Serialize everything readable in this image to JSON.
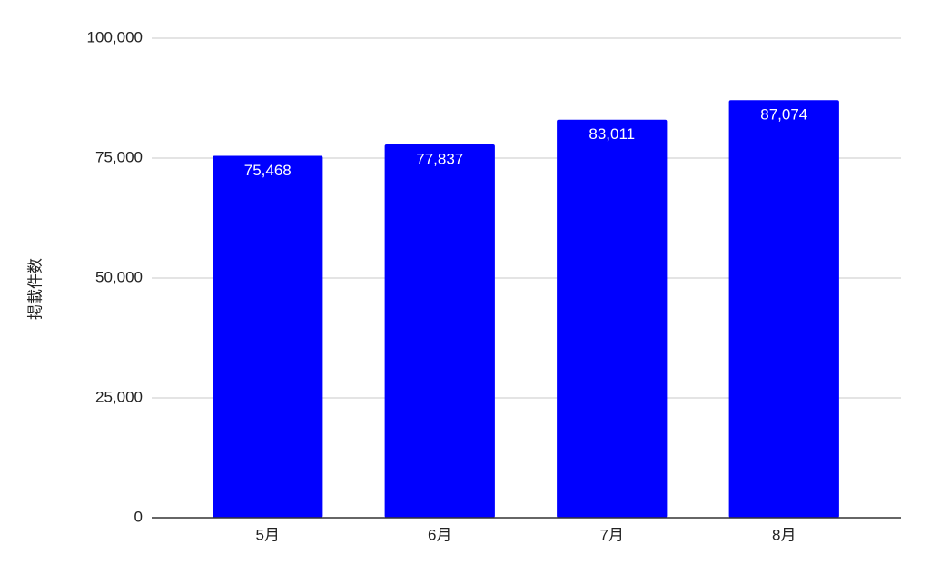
{
  "chart_data": {
    "type": "bar",
    "y_label": "掲載件数",
    "categories": [
      "5月",
      "6月",
      "7月",
      "8月"
    ],
    "values": [
      75468,
      77837,
      83011,
      87074
    ],
    "value_labels": [
      "75,468",
      "77,837",
      "83,011",
      "87,074"
    ],
    "color": "#0000ff",
    "ylim": [
      0,
      100000
    ],
    "yticks": [
      0,
      {
        "value": 25000,
        "label": "25,000"
      },
      {
        "value": 50000,
        "label": "50,000"
      },
      {
        "value": 75000,
        "label": "75,000"
      },
      {
        "value": 100000,
        "label": "100,000"
      }
    ],
    "grid": true
  }
}
